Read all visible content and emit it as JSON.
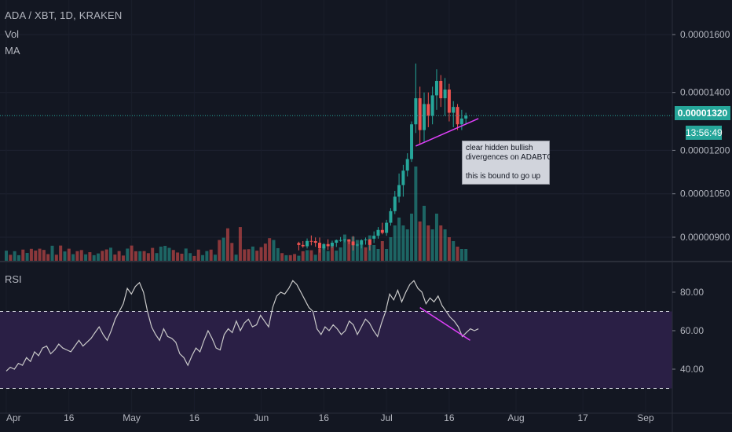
{
  "header": {
    "title": "ADA / XBT, 1D, KRAKEN",
    "vol_label": "Vol",
    "ma_label": "MA",
    "rsi_label": "RSI"
  },
  "price_axis": {
    "ticks": [
      "0.00001600",
      "0.00001400",
      "0.00001200",
      "0.00001050",
      "0.00000900"
    ],
    "current_price": "0.00001320",
    "countdown": "13:56:49"
  },
  "rsi_axis": {
    "ticks": [
      "80.00",
      "60.00",
      "40.00"
    ]
  },
  "time_axis": {
    "ticks": [
      "Apr",
      "16",
      "May",
      "16",
      "Jun",
      "16",
      "Jul",
      "16",
      "Aug",
      "17",
      "Sep"
    ]
  },
  "annotation": {
    "line1": "clear hidden bullish",
    "line2": "divergences on ADABTC",
    "line3": "this is bound to go up"
  },
  "colors": {
    "up": "#26a69a",
    "down": "#ef5350",
    "rsi_line": "#c9c9c9",
    "rsi_band": "#2a1f45",
    "trendline": "#e040fb",
    "background": "#131722"
  },
  "chart_data": [
    {
      "type": "candlestick",
      "title": "ADA / XBT, 1D, KRAKEN",
      "y_ticks": [
        1.6e-05,
        1.4e-05,
        1.2e-05,
        1.05e-05,
        9e-06
      ],
      "current_price": 1.32e-05,
      "ohlc": [
        {
          "date": "2018-06-28",
          "o": 8.95e-06,
          "h": 9.2e-06,
          "l": 8.8e-06,
          "c": 9.05e-06
        },
        {
          "date": "2018-06-29",
          "o": 9.05e-06,
          "h": 9.35e-06,
          "l": 8.95e-06,
          "c": 9.25e-06
        },
        {
          "date": "2018-06-30",
          "o": 9.25e-06,
          "h": 9.5e-06,
          "l": 9.1e-06,
          "c": 9.15e-06
        },
        {
          "date": "2018-07-01",
          "o": 9.15e-06,
          "h": 9.6e-06,
          "l": 9.05e-06,
          "c": 9.5e-06
        },
        {
          "date": "2018-07-02",
          "o": 9.5e-06,
          "h": 1e-05,
          "l": 9.4e-06,
          "c": 9.9e-06
        },
        {
          "date": "2018-07-03",
          "o": 9.9e-06,
          "h": 1.06e-05,
          "l": 9.8e-06,
          "c": 1.04e-05
        },
        {
          "date": "2018-07-04",
          "o": 1.04e-05,
          "h": 1.12e-05,
          "l": 1.02e-05,
          "c": 1.08e-05
        },
        {
          "date": "2018-07-05",
          "o": 1.08e-05,
          "h": 1.15e-05,
          "l": 1.04e-05,
          "c": 1.13e-05
        },
        {
          "date": "2018-07-06",
          "o": 1.13e-05,
          "h": 1.19e-05,
          "l": 1.11e-05,
          "c": 1.17e-05
        },
        {
          "date": "2018-07-07",
          "o": 1.17e-05,
          "h": 1.3e-05,
          "l": 1.16e-05,
          "c": 1.29e-05
        },
        {
          "date": "2018-07-08",
          "o": 1.29e-05,
          "h": 1.5e-05,
          "l": 1.26e-05,
          "c": 1.38e-05
        },
        {
          "date": "2018-07-09",
          "o": 1.38e-05,
          "h": 1.42e-05,
          "l": 1.22e-05,
          "c": 1.27e-05
        },
        {
          "date": "2018-07-10",
          "o": 1.27e-05,
          "h": 1.4e-05,
          "l": 1.23e-05,
          "c": 1.36e-05
        },
        {
          "date": "2018-07-11",
          "o": 1.36e-05,
          "h": 1.4e-05,
          "l": 1.28e-05,
          "c": 1.32e-05
        },
        {
          "date": "2018-07-12",
          "o": 1.32e-05,
          "h": 1.42e-05,
          "l": 1.29e-05,
          "c": 1.39e-05
        },
        {
          "date": "2018-07-13",
          "o": 1.39e-05,
          "h": 1.48e-05,
          "l": 1.34e-05,
          "c": 1.44e-05
        },
        {
          "date": "2018-07-14",
          "o": 1.44e-05,
          "h": 1.46e-05,
          "l": 1.35e-05,
          "c": 1.38e-05
        },
        {
          "date": "2018-07-15",
          "o": 1.38e-05,
          "h": 1.45e-05,
          "l": 1.32e-05,
          "c": 1.41e-05
        },
        {
          "date": "2018-07-16",
          "o": 1.41e-05,
          "h": 1.43e-05,
          "l": 1.3e-05,
          "c": 1.33e-05
        },
        {
          "date": "2018-07-17",
          "o": 1.33e-05,
          "h": 1.37e-05,
          "l": 1.28e-05,
          "c": 1.35e-05
        },
        {
          "date": "2018-07-18",
          "o": 1.35e-05,
          "h": 1.36e-05,
          "l": 1.27e-05,
          "c": 1.29e-05
        },
        {
          "date": "2018-07-19",
          "o": 1.29e-05,
          "h": 1.34e-05,
          "l": 1.27e-05,
          "c": 1.31e-05
        },
        {
          "date": "2018-07-20",
          "o": 1.31e-05,
          "h": 1.33e-05,
          "l": 1.29e-05,
          "c": 1.32e-05
        }
      ],
      "volume": [
        20,
        15,
        25,
        15,
        30,
        45,
        55,
        45,
        40,
        60,
        120,
        50,
        70,
        45,
        40,
        60,
        45,
        40,
        30,
        25,
        18,
        15,
        15
      ]
    },
    {
      "type": "line",
      "name": "RSI",
      "y_ticks": [
        80,
        60,
        40
      ],
      "bands": [
        30,
        70
      ],
      "x_start": "2018-04-01",
      "x_end": "2018-07-23",
      "values": [
        39,
        41,
        40,
        43,
        42,
        46,
        44,
        49,
        47,
        51,
        52,
        48,
        50,
        53,
        51,
        50,
        49,
        52,
        55,
        52,
        54,
        56,
        59,
        62,
        58,
        55,
        60,
        66,
        70,
        74,
        82,
        79,
        83,
        85,
        80,
        70,
        62,
        58,
        55,
        61,
        57,
        56,
        54,
        48,
        46,
        42,
        47,
        51,
        49,
        55,
        60,
        56,
        51,
        50,
        58,
        61,
        59,
        65,
        60,
        64,
        66,
        62,
        63,
        68,
        65,
        62,
        72,
        78,
        80,
        79,
        82,
        86,
        84,
        80,
        76,
        72,
        70,
        61,
        58,
        62,
        60,
        63,
        61,
        58,
        60,
        65,
        63,
        58,
        62,
        66,
        64,
        60,
        57,
        64,
        70,
        79,
        76,
        81,
        75,
        80,
        84,
        86,
        82,
        80,
        74,
        77,
        75,
        78,
        73,
        70,
        67,
        65,
        62,
        57,
        59,
        61,
        60,
        61
      ]
    }
  ]
}
